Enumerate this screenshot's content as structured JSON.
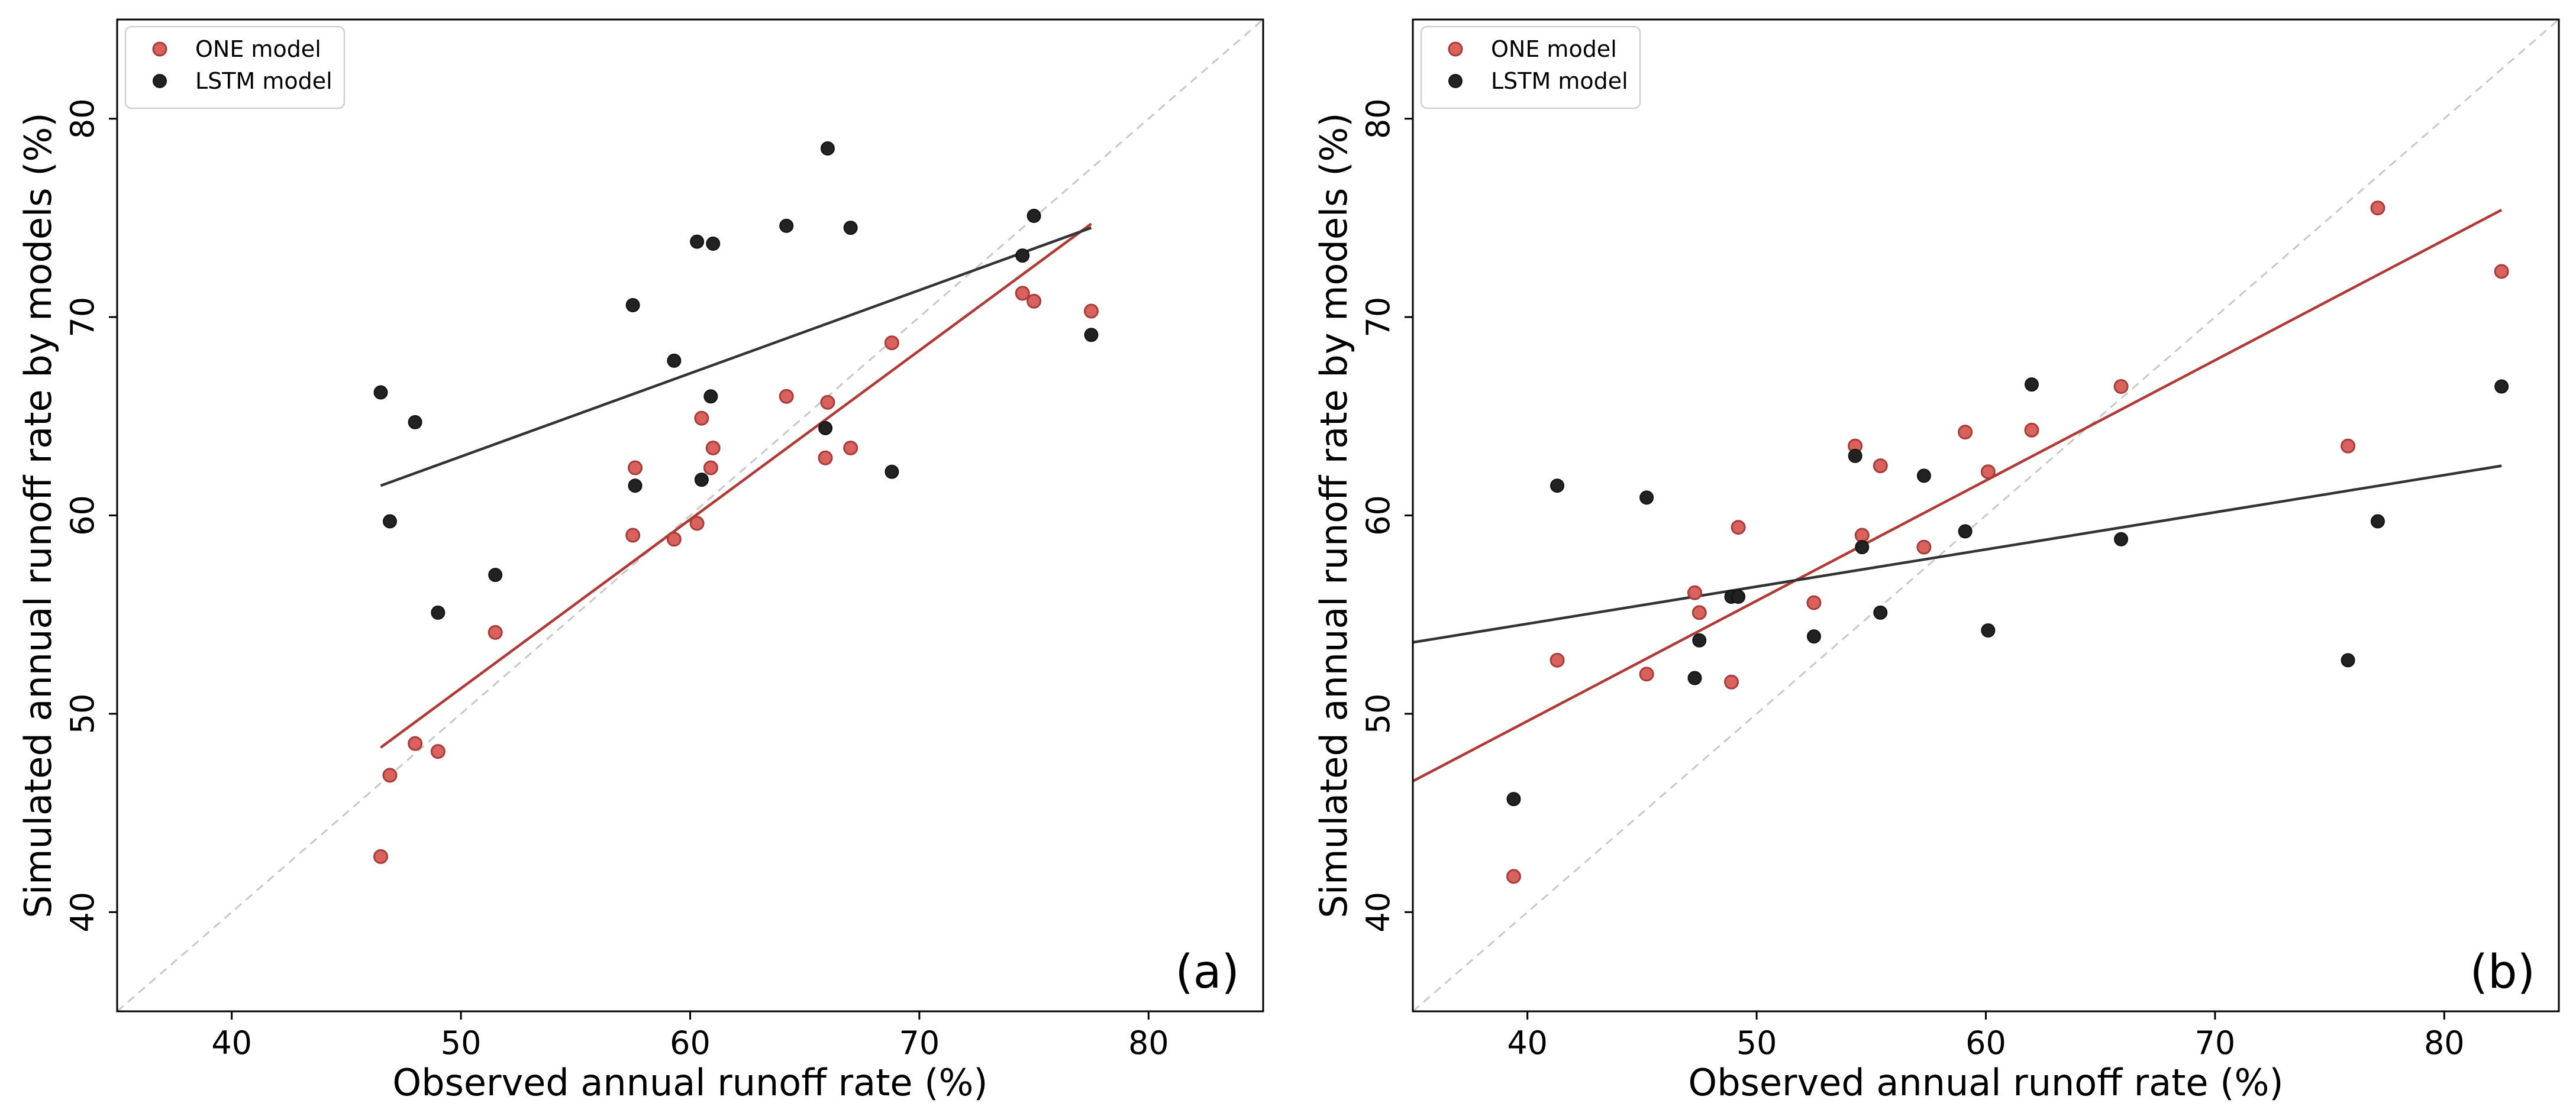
{
  "colors": {
    "one_model": "#d9625e",
    "one_model_edge": "#a83c38",
    "one_line": "#b03a36",
    "lstm_model": "#222222",
    "lstm_line": "#333333",
    "identity_line": "#c8c8c8"
  },
  "chart_data": [
    {
      "type": "scatter",
      "panel_label": "(a)",
      "xlabel": "Observed annual runoff rate (%)",
      "ylabel": "Simulated annual runoff rate by models (%)",
      "xlim": [
        35,
        85
      ],
      "ylim": [
        35,
        85
      ],
      "xticks": [
        40,
        50,
        60,
        70,
        80
      ],
      "yticks": [
        40,
        50,
        60,
        70,
        80
      ],
      "legend": {
        "position": "top-left",
        "entries": [
          "ONE model",
          "LSTM model"
        ]
      },
      "identity_line": true,
      "series": [
        {
          "name": "ONE model",
          "points": [
            [
              46.5,
              42.8
            ],
            [
              46.9,
              46.9
            ],
            [
              48.0,
              48.5
            ],
            [
              49.0,
              48.1
            ],
            [
              51.5,
              54.1
            ],
            [
              57.5,
              59.0
            ],
            [
              57.6,
              62.4
            ],
            [
              59.3,
              58.8
            ],
            [
              60.3,
              59.6
            ],
            [
              60.5,
              64.9
            ],
            [
              60.9,
              62.4
            ],
            [
              61.0,
              63.4
            ],
            [
              64.2,
              66.0
            ],
            [
              65.9,
              62.9
            ],
            [
              66.0,
              65.7
            ],
            [
              67.0,
              63.4
            ],
            [
              68.8,
              68.7
            ],
            [
              74.5,
              71.2
            ],
            [
              75.0,
              70.8
            ],
            [
              77.5,
              70.3
            ]
          ],
          "fit_line": [
            [
              46.5,
              48.3
            ],
            [
              77.5,
              74.7
            ]
          ]
        },
        {
          "name": "LSTM model",
          "points": [
            [
              46.5,
              66.2
            ],
            [
              46.9,
              59.7
            ],
            [
              48.0,
              64.7
            ],
            [
              49.0,
              55.1
            ],
            [
              51.5,
              57.0
            ],
            [
              57.5,
              70.6
            ],
            [
              57.6,
              61.5
            ],
            [
              59.3,
              67.8
            ],
            [
              60.3,
              73.8
            ],
            [
              60.5,
              61.8
            ],
            [
              60.9,
              66.0
            ],
            [
              61.0,
              73.7
            ],
            [
              64.2,
              74.6
            ],
            [
              65.9,
              64.4
            ],
            [
              66.0,
              78.5
            ],
            [
              67.0,
              74.5
            ],
            [
              68.8,
              62.2
            ],
            [
              74.5,
              73.1
            ],
            [
              75.0,
              75.1
            ],
            [
              77.5,
              69.1
            ]
          ],
          "fit_line": [
            [
              46.5,
              61.5
            ],
            [
              77.5,
              74.5
            ]
          ]
        }
      ]
    },
    {
      "type": "scatter",
      "panel_label": "(b)",
      "xlabel": "Observed annual runoff rate (%)",
      "ylabel": "Simulated annual runoff rate by models (%)",
      "xlim": [
        35,
        85
      ],
      "ylim": [
        35,
        85
      ],
      "xticks": [
        40,
        50,
        60,
        70,
        80
      ],
      "yticks": [
        40,
        50,
        60,
        70,
        80
      ],
      "legend": {
        "position": "top-left",
        "entries": [
          "ONE model",
          "LSTM model"
        ]
      },
      "identity_line": true,
      "series": [
        {
          "name": "ONE model",
          "points": [
            [
              39.4,
              41.8
            ],
            [
              41.3,
              52.7
            ],
            [
              45.2,
              52.0
            ],
            [
              47.3,
              56.1
            ],
            [
              47.5,
              55.1
            ],
            [
              48.9,
              51.6
            ],
            [
              49.2,
              59.4
            ],
            [
              52.5,
              55.6
            ],
            [
              54.3,
              63.5
            ],
            [
              54.6,
              59.0
            ],
            [
              55.4,
              62.5
            ],
            [
              57.3,
              58.4
            ],
            [
              59.1,
              64.2
            ],
            [
              60.1,
              62.2
            ],
            [
              62.0,
              64.3
            ],
            [
              65.9,
              66.5
            ],
            [
              75.8,
              63.5
            ],
            [
              77.1,
              75.5
            ],
            [
              82.5,
              72.3
            ]
          ],
          "fit_line": [
            [
              35.0,
              46.6
            ],
            [
              82.5,
              75.4
            ]
          ]
        },
        {
          "name": "LSTM model",
          "points": [
            [
              39.4,
              45.7
            ],
            [
              41.3,
              61.5
            ],
            [
              45.2,
              60.9
            ],
            [
              47.3,
              51.8
            ],
            [
              47.5,
              53.7
            ],
            [
              48.9,
              55.9
            ],
            [
              49.2,
              55.9
            ],
            [
              52.5,
              53.9
            ],
            [
              54.3,
              63.0
            ],
            [
              54.6,
              58.4
            ],
            [
              55.4,
              55.1
            ],
            [
              57.3,
              62.0
            ],
            [
              59.1,
              59.2
            ],
            [
              60.1,
              54.2
            ],
            [
              62.0,
              66.6
            ],
            [
              65.9,
              58.8
            ],
            [
              75.8,
              52.7
            ],
            [
              77.1,
              59.7
            ],
            [
              82.5,
              66.5
            ]
          ],
          "fit_line": [
            [
              35.0,
              53.6
            ],
            [
              82.5,
              62.5
            ]
          ]
        }
      ]
    }
  ]
}
